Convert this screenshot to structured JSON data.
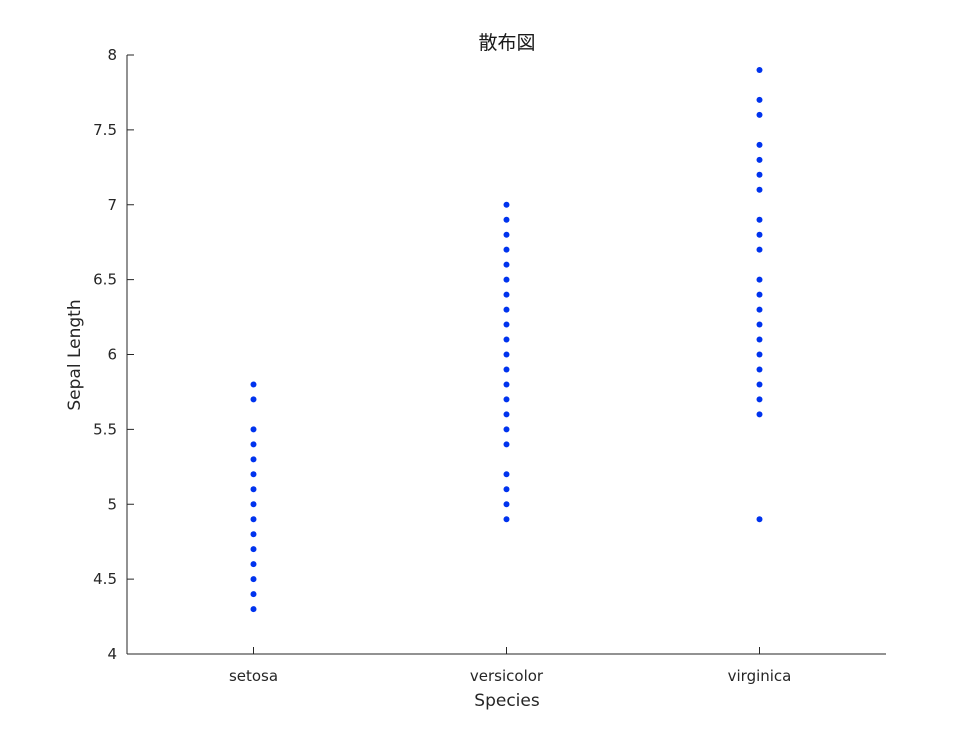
{
  "chart_data": {
    "type": "scatter",
    "title": "散布図",
    "xlabel": "Species",
    "ylabel": "Sepal Length",
    "categories": [
      "setosa",
      "versicolor",
      "virginica"
    ],
    "ylim": [
      4,
      8
    ],
    "yticks": [
      "4",
      "4.5",
      "5",
      "5.5",
      "6",
      "6.5",
      "7",
      "7.5",
      "8"
    ],
    "grid": false,
    "marker_color": "#0033ee",
    "series": [
      {
        "category": "setosa",
        "values": [
          4.3,
          4.4,
          4.5,
          4.6,
          4.7,
          4.8,
          4.9,
          5.0,
          5.1,
          5.2,
          5.3,
          5.4,
          5.5,
          5.7,
          5.8
        ]
      },
      {
        "category": "versicolor",
        "values": [
          4.9,
          5.0,
          5.1,
          5.2,
          5.4,
          5.5,
          5.6,
          5.7,
          5.8,
          5.9,
          6.0,
          6.1,
          6.2,
          6.3,
          6.4,
          6.5,
          6.6,
          6.7,
          6.8,
          6.9,
          7.0
        ]
      },
      {
        "category": "virginica",
        "values": [
          4.9,
          5.6,
          5.7,
          5.8,
          5.9,
          6.0,
          6.1,
          6.2,
          6.3,
          6.4,
          6.5,
          6.7,
          6.8,
          6.9,
          7.1,
          7.2,
          7.3,
          7.4,
          7.6,
          7.7,
          7.9
        ]
      }
    ]
  }
}
